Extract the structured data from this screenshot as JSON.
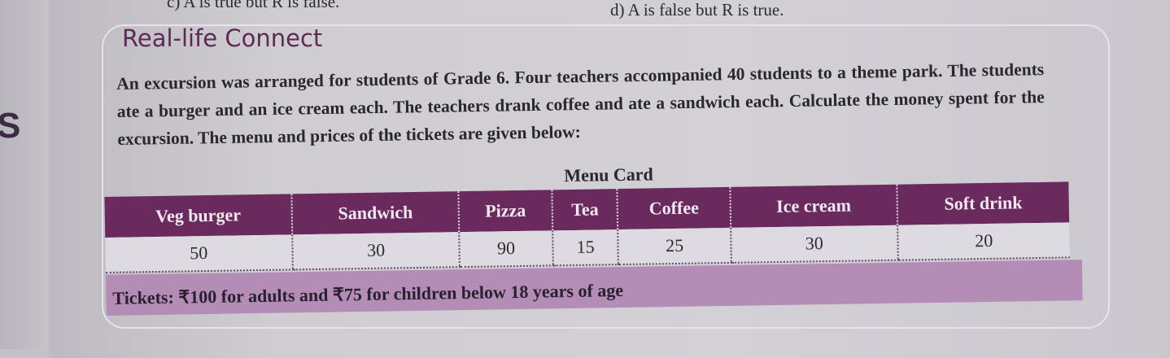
{
  "options": {
    "c": "c)  A is true but R is false.",
    "d": "d)  A is false but R is true."
  },
  "side_letter": "S",
  "section": {
    "heading": "Real-life Connect",
    "paragraph": "An excursion was arranged for students of Grade 6. Four teachers accompanied 40 students to a theme park. The students ate a burger and an ice cream each. The teachers drank coffee and ate a sandwich each. Calculate the money spent for the excursion. The menu and prices of the tickets are given below:"
  },
  "menu": {
    "caption": "Menu Card",
    "items": [
      {
        "name": "Veg burger",
        "price": "50"
      },
      {
        "name": "Sandwich",
        "price": "30"
      },
      {
        "name": "Pizza",
        "price": "90"
      },
      {
        "name": "Tea",
        "price": "15"
      },
      {
        "name": "Coffee",
        "price": "25"
      },
      {
        "name": "Ice cream",
        "price": "30"
      },
      {
        "name": "Soft drink",
        "price": "20"
      }
    ],
    "tickets": "Tickets: ₹100 for adults and ₹75 for children below 18 years of age"
  },
  "colors": {
    "header": "#6a2a5e",
    "tickets_band": "#b38db6",
    "heading": "#5c2a55"
  }
}
